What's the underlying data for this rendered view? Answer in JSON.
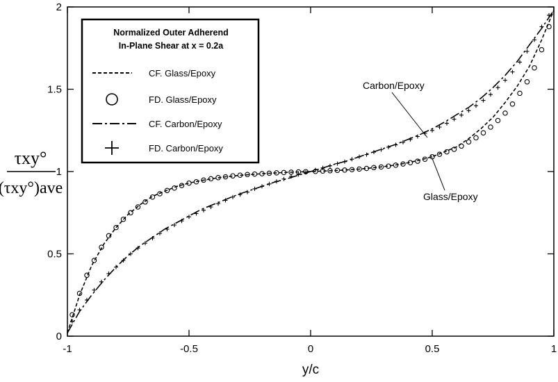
{
  "chart_data": {
    "type": "line",
    "title": "",
    "xlabel": "y/c",
    "ylabel": {
      "numerator": "τxy°",
      "denominator": "(τxy°)ave"
    },
    "xlim": [
      -1,
      1
    ],
    "ylim": [
      0,
      2
    ],
    "xticks": [
      -1,
      -0.5,
      0,
      0.5,
      1
    ],
    "yticks": [
      0,
      0.5,
      1,
      1.5,
      2
    ],
    "xtick_labels": [
      "-1",
      "-0.5",
      "0",
      "0.5",
      "1"
    ],
    "ytick_labels": [
      "0",
      "0.5",
      "1",
      "1.5",
      "2"
    ],
    "grid": false,
    "legend": {
      "placement": "top-left",
      "title_line1": "Normalized Outer Adherend",
      "title_line2": "In-Plane Shear at x = 0.2a",
      "entries": [
        {
          "label": "CF. Glass/Epoxy",
          "marker": "dashed-line"
        },
        {
          "label": "FD. Glass/Epoxy",
          "marker": "circle"
        },
        {
          "label": "CF. Carbon/Epoxy",
          "marker": "dash-dot-line"
        },
        {
          "label": "FD. Carbon/Epoxy",
          "marker": "plus"
        }
      ]
    },
    "annotations": [
      {
        "text": "Carbon/Epoxy",
        "points_to": {
          "x": 0.4,
          "y": 1.2
        }
      },
      {
        "text": "Glass/Epoxy",
        "points_to": {
          "x": 0.5,
          "y": 1.1
        }
      }
    ],
    "series": [
      {
        "name": "CF. Glass/Epoxy",
        "style": "dashed",
        "x": [
          -1,
          -0.95,
          -0.9,
          -0.85,
          -0.8,
          -0.75,
          -0.7,
          -0.65,
          -0.6,
          -0.55,
          -0.5,
          -0.45,
          -0.4,
          -0.35,
          -0.3,
          -0.25,
          -0.2,
          -0.15,
          -0.1,
          -0.05,
          0,
          0.05,
          0.1,
          0.15,
          0.2,
          0.25,
          0.3,
          0.35,
          0.4,
          0.45,
          0.5,
          0.55,
          0.6,
          0.65,
          0.7,
          0.75,
          0.8,
          0.85,
          0.9,
          0.95,
          1
        ],
        "y": [
          0.02,
          0.25,
          0.43,
          0.56,
          0.66,
          0.74,
          0.8,
          0.85,
          0.88,
          0.91,
          0.93,
          0.945,
          0.958,
          0.968,
          0.976,
          0.982,
          0.987,
          0.991,
          0.995,
          0.998,
          1.0,
          1.003,
          1.006,
          1.01,
          1.015,
          1.022,
          1.03,
          1.04,
          1.053,
          1.07,
          1.09,
          1.12,
          1.15,
          1.2,
          1.26,
          1.33,
          1.42,
          1.52,
          1.64,
          1.8,
          1.98
        ]
      },
      {
        "name": "FD. Glass/Epoxy",
        "style": "circle",
        "x": [
          -0.98,
          -0.95,
          -0.92,
          -0.89,
          -0.86,
          -0.83,
          -0.8,
          -0.77,
          -0.74,
          -0.71,
          -0.68,
          -0.65,
          -0.62,
          -0.59,
          -0.56,
          -0.53,
          -0.5,
          -0.47,
          -0.44,
          -0.41,
          -0.38,
          -0.35,
          -0.32,
          -0.29,
          -0.26,
          -0.23,
          -0.2,
          -0.17,
          -0.14,
          -0.11,
          -0.08,
          -0.05,
          -0.02,
          0.02,
          0.05,
          0.08,
          0.11,
          0.14,
          0.17,
          0.2,
          0.23,
          0.26,
          0.29,
          0.32,
          0.35,
          0.38,
          0.41,
          0.44,
          0.47,
          0.5,
          0.53,
          0.56,
          0.59,
          0.62,
          0.65,
          0.68,
          0.71,
          0.74,
          0.77,
          0.8,
          0.83,
          0.86,
          0.89,
          0.92,
          0.95,
          0.98
        ],
        "y": [
          0.13,
          0.26,
          0.37,
          0.46,
          0.54,
          0.61,
          0.66,
          0.71,
          0.75,
          0.785,
          0.815,
          0.845,
          0.865,
          0.885,
          0.9,
          0.915,
          0.93,
          0.938,
          0.948,
          0.956,
          0.963,
          0.968,
          0.974,
          0.978,
          0.982,
          0.985,
          0.987,
          0.99,
          0.992,
          0.994,
          0.996,
          0.998,
          0.999,
          1.001,
          1.003,
          1.005,
          1.007,
          1.009,
          1.012,
          1.015,
          1.019,
          1.024,
          1.028,
          1.033,
          1.039,
          1.046,
          1.054,
          1.063,
          1.075,
          1.09,
          1.105,
          1.12,
          1.135,
          1.155,
          1.18,
          1.205,
          1.235,
          1.27,
          1.31,
          1.355,
          1.41,
          1.475,
          1.545,
          1.63,
          1.74,
          1.88
        ]
      },
      {
        "name": "CF. Carbon/Epoxy",
        "style": "dash-dot",
        "x": [
          -1,
          -0.95,
          -0.9,
          -0.85,
          -0.8,
          -0.75,
          -0.7,
          -0.65,
          -0.6,
          -0.55,
          -0.5,
          -0.45,
          -0.4,
          -0.35,
          -0.3,
          -0.25,
          -0.2,
          -0.15,
          -0.1,
          -0.05,
          0,
          0.05,
          0.1,
          0.15,
          0.2,
          0.25,
          0.3,
          0.35,
          0.4,
          0.45,
          0.5,
          0.55,
          0.6,
          0.65,
          0.7,
          0.75,
          0.8,
          0.85,
          0.9,
          0.95,
          1
        ],
        "y": [
          0.02,
          0.15,
          0.25,
          0.34,
          0.42,
          0.49,
          0.55,
          0.6,
          0.65,
          0.69,
          0.73,
          0.77,
          0.8,
          0.83,
          0.86,
          0.885,
          0.91,
          0.935,
          0.955,
          0.978,
          1.0,
          1.022,
          1.045,
          1.065,
          1.09,
          1.115,
          1.14,
          1.165,
          1.195,
          1.225,
          1.26,
          1.3,
          1.345,
          1.39,
          1.445,
          1.51,
          1.585,
          1.67,
          1.77,
          1.87,
          1.98
        ]
      },
      {
        "name": "FD. Carbon/Epoxy",
        "style": "plus",
        "x": [
          -0.98,
          -0.95,
          -0.92,
          -0.89,
          -0.86,
          -0.83,
          -0.8,
          -0.77,
          -0.74,
          -0.71,
          -0.68,
          -0.65,
          -0.62,
          -0.59,
          -0.56,
          -0.53,
          -0.5,
          -0.47,
          -0.44,
          -0.41,
          -0.38,
          -0.35,
          -0.32,
          -0.29,
          -0.26,
          -0.23,
          -0.2,
          -0.17,
          -0.14,
          -0.11,
          -0.08,
          -0.05,
          -0.02,
          0.02,
          0.05,
          0.08,
          0.11,
          0.14,
          0.17,
          0.2,
          0.23,
          0.26,
          0.29,
          0.32,
          0.35,
          0.38,
          0.41,
          0.44,
          0.47,
          0.5,
          0.53,
          0.56,
          0.59,
          0.62,
          0.65,
          0.68,
          0.71,
          0.74,
          0.77,
          0.8,
          0.83,
          0.86,
          0.89,
          0.92,
          0.95,
          0.98
        ],
        "y": [
          0.09,
          0.16,
          0.22,
          0.28,
          0.33,
          0.38,
          0.42,
          0.46,
          0.5,
          0.535,
          0.565,
          0.595,
          0.625,
          0.65,
          0.675,
          0.7,
          0.725,
          0.745,
          0.765,
          0.785,
          0.805,
          0.825,
          0.845,
          0.86,
          0.875,
          0.895,
          0.91,
          0.925,
          0.94,
          0.955,
          0.97,
          0.982,
          0.995,
          1.01,
          1.022,
          1.035,
          1.048,
          1.06,
          1.075,
          1.09,
          1.103,
          1.118,
          1.133,
          1.148,
          1.162,
          1.178,
          1.195,
          1.213,
          1.232,
          1.25,
          1.27,
          1.293,
          1.318,
          1.343,
          1.37,
          1.4,
          1.432,
          1.468,
          1.51,
          1.555,
          1.605,
          1.665,
          1.73,
          1.8,
          1.88,
          1.95
        ]
      }
    ]
  }
}
